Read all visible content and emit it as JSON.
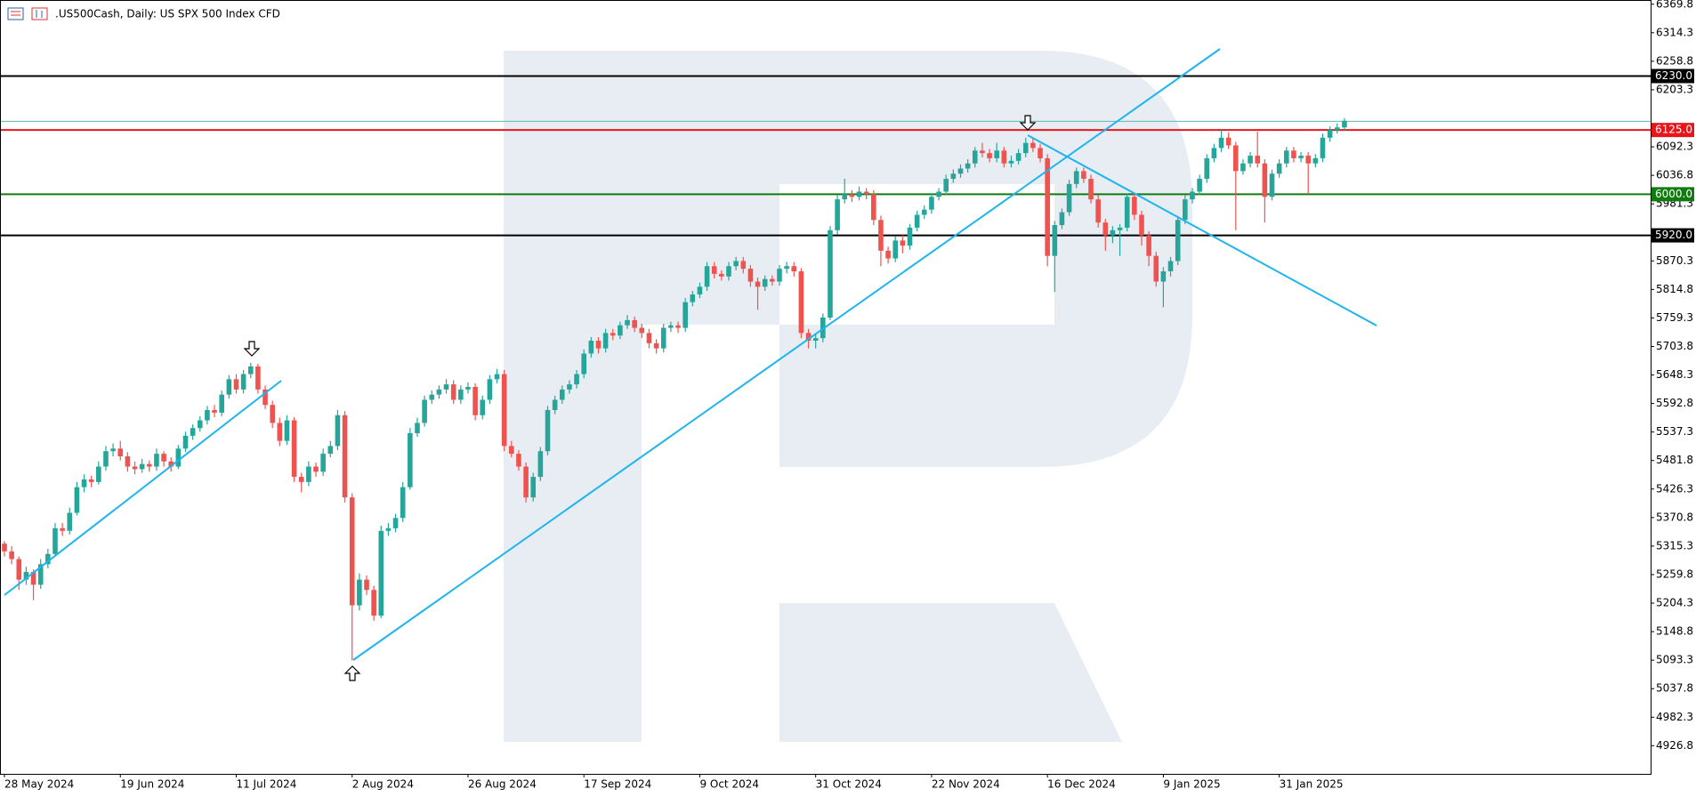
{
  "chart_data": {
    "type": "candlestick",
    "title": ".US500Cash, Daily:  US SPX 500 Index CFD",
    "up_color": "#26a69a",
    "down_color": "#ef5350",
    "ylim": [
      4872,
      6378
    ],
    "yticks": [
      6369.8,
      6314.3,
      6258.8,
      6203.3,
      6092.3,
      6036.8,
      5981.3,
      5870.3,
      5814.8,
      5759.3,
      5703.8,
      5648.3,
      5592.8,
      5537.3,
      5481.8,
      5426.3,
      5370.8,
      5315.3,
      5259.8,
      5204.3,
      5148.8,
      5093.3,
      5037.8,
      4982.3,
      4926.8
    ],
    "levels": [
      {
        "value": 6230,
        "label": "6230.0",
        "color": "#000000"
      },
      {
        "value": 6125,
        "label": "6125.0",
        "color": "#e8151b"
      },
      {
        "value": 6000,
        "label": "6000.0",
        "color": "#107c10"
      },
      {
        "value": 5920,
        "label": "5920.0",
        "color": "#000000"
      }
    ],
    "price_line": {
      "value": 6142,
      "color": "#5bb8b0"
    },
    "categories": [
      "28 May 2024",
      null,
      null,
      null,
      null,
      null,
      null,
      null,
      null,
      null,
      null,
      null,
      null,
      null,
      null,
      null,
      "19 Jun 2024",
      null,
      null,
      null,
      null,
      null,
      null,
      null,
      null,
      null,
      null,
      null,
      null,
      null,
      null,
      null,
      "11 Jul 2024",
      null,
      null,
      null,
      null,
      null,
      null,
      null,
      null,
      null,
      null,
      null,
      null,
      null,
      null,
      null,
      "2 Aug 2024",
      null,
      null,
      null,
      null,
      null,
      null,
      null,
      null,
      null,
      null,
      null,
      null,
      null,
      null,
      null,
      "26 Aug 2024",
      null,
      null,
      null,
      null,
      null,
      null,
      null,
      null,
      null,
      null,
      null,
      null,
      null,
      null,
      null,
      "17 Sep 2024",
      null,
      null,
      null,
      null,
      null,
      null,
      null,
      null,
      null,
      null,
      null,
      null,
      null,
      null,
      null,
      "9 Oct 2024",
      null,
      null,
      null,
      null,
      null,
      null,
      null,
      null,
      null,
      null,
      null,
      null,
      null,
      null,
      null,
      "31 Oct 2024",
      null,
      null,
      null,
      null,
      null,
      null,
      null,
      null,
      null,
      null,
      null,
      null,
      null,
      null,
      null,
      "22 Nov 2024",
      null,
      null,
      null,
      null,
      null,
      null,
      null,
      null,
      null,
      null,
      null,
      null,
      null,
      null,
      null,
      "16 Dec 2024",
      null,
      null,
      null,
      null,
      null,
      null,
      null,
      null,
      null,
      null,
      null,
      null,
      null,
      null,
      null,
      "9 Jan 2025",
      null,
      null,
      null,
      null,
      null,
      null,
      null,
      null,
      null,
      null,
      null,
      null,
      null,
      null,
      null,
      "31 Jan 2025",
      null,
      null,
      null,
      null,
      null,
      null,
      null,
      null,
      null
    ],
    "candles": [
      [
        5320,
        5325,
        5295,
        5305
      ],
      [
        5305,
        5315,
        5280,
        5290
      ],
      [
        5290,
        5295,
        5230,
        5250
      ],
      [
        5250,
        5275,
        5240,
        5265
      ],
      [
        5265,
        5270,
        5210,
        5240
      ],
      [
        5240,
        5290,
        5232,
        5280
      ],
      [
        5280,
        5310,
        5272,
        5300
      ],
      [
        5300,
        5360,
        5295,
        5350
      ],
      [
        5350,
        5360,
        5335,
        5345
      ],
      [
        5345,
        5390,
        5338,
        5380
      ],
      [
        5380,
        5440,
        5375,
        5430
      ],
      [
        5430,
        5455,
        5420,
        5445
      ],
      [
        5445,
        5452,
        5430,
        5440
      ],
      [
        5440,
        5480,
        5435,
        5470
      ],
      [
        5470,
        5510,
        5462,
        5500
      ],
      [
        5500,
        5515,
        5490,
        5505
      ],
      [
        5505,
        5520,
        5482,
        5490
      ],
      [
        5490,
        5498,
        5460,
        5470
      ],
      [
        5470,
        5480,
        5455,
        5465
      ],
      [
        5465,
        5485,
        5458,
        5475
      ],
      [
        5475,
        5482,
        5460,
        5470
      ],
      [
        5470,
        5505,
        5462,
        5495
      ],
      [
        5495,
        5500,
        5470,
        5480
      ],
      [
        5480,
        5488,
        5460,
        5470
      ],
      [
        5470,
        5512,
        5465,
        5505
      ],
      [
        5505,
        5538,
        5498,
        5530
      ],
      [
        5530,
        5552,
        5522,
        5545
      ],
      [
        5545,
        5568,
        5538,
        5560
      ],
      [
        5560,
        5588,
        5552,
        5580
      ],
      [
        5580,
        5590,
        5566,
        5575
      ],
      [
        5575,
        5618,
        5568,
        5610
      ],
      [
        5610,
        5648,
        5602,
        5640
      ],
      [
        5640,
        5650,
        5612,
        5620
      ],
      [
        5620,
        5658,
        5612,
        5650
      ],
      [
        5650,
        5672,
        5642,
        5665
      ],
      [
        5665,
        5670,
        5612,
        5620
      ],
      [
        5620,
        5628,
        5582,
        5590
      ],
      [
        5590,
        5598,
        5545,
        5555
      ],
      [
        5555,
        5565,
        5510,
        5520
      ],
      [
        5520,
        5570,
        5512,
        5560
      ],
      [
        5560,
        5566,
        5440,
        5450
      ],
      [
        5450,
        5458,
        5420,
        5440
      ],
      [
        5440,
        5480,
        5432,
        5470
      ],
      [
        5470,
        5478,
        5450,
        5460
      ],
      [
        5460,
        5505,
        5452,
        5495
      ],
      [
        5495,
        5520,
        5488,
        5510
      ],
      [
        5510,
        5580,
        5502,
        5570
      ],
      [
        5570,
        5578,
        5400,
        5410
      ],
      [
        5410,
        5418,
        5093,
        5200
      ],
      [
        5200,
        5262,
        5190,
        5250
      ],
      [
        5250,
        5258,
        5220,
        5230
      ],
      [
        5230,
        5238,
        5170,
        5180
      ],
      [
        5180,
        5355,
        5175,
        5345
      ],
      [
        5345,
        5360,
        5335,
        5350
      ],
      [
        5350,
        5378,
        5342,
        5370
      ],
      [
        5370,
        5440,
        5362,
        5430
      ],
      [
        5430,
        5545,
        5425,
        5535
      ],
      [
        5535,
        5565,
        5528,
        5555
      ],
      [
        5555,
        5608,
        5548,
        5600
      ],
      [
        5600,
        5618,
        5592,
        5610
      ],
      [
        5610,
        5628,
        5602,
        5620
      ],
      [
        5620,
        5640,
        5612,
        5630
      ],
      [
        5630,
        5638,
        5592,
        5600
      ],
      [
        5600,
        5628,
        5592,
        5620
      ],
      [
        5620,
        5634,
        5612,
        5625
      ],
      [
        5625,
        5632,
        5560,
        5570
      ],
      [
        5570,
        5608,
        5562,
        5600
      ],
      [
        5600,
        5648,
        5592,
        5640
      ],
      [
        5640,
        5660,
        5632,
        5650
      ],
      [
        5650,
        5658,
        5500,
        5510
      ],
      [
        5510,
        5520,
        5488,
        5495
      ],
      [
        5495,
        5502,
        5462,
        5470
      ],
      [
        5470,
        5478,
        5400,
        5410
      ],
      [
        5410,
        5458,
        5402,
        5450
      ],
      [
        5450,
        5508,
        5442,
        5500
      ],
      [
        5500,
        5588,
        5492,
        5580
      ],
      [
        5580,
        5608,
        5572,
        5600
      ],
      [
        5600,
        5628,
        5592,
        5620
      ],
      [
        5620,
        5638,
        5612,
        5630
      ],
      [
        5630,
        5658,
        5622,
        5650
      ],
      [
        5650,
        5698,
        5642,
        5690
      ],
      [
        5690,
        5722,
        5682,
        5715
      ],
      [
        5715,
        5722,
        5690,
        5700
      ],
      [
        5700,
        5738,
        5692,
        5730
      ],
      [
        5730,
        5738,
        5716,
        5725
      ],
      [
        5725,
        5752,
        5718,
        5745
      ],
      [
        5745,
        5765,
        5738,
        5755
      ],
      [
        5755,
        5762,
        5732,
        5740
      ],
      [
        5740,
        5748,
        5720,
        5730
      ],
      [
        5730,
        5738,
        5700,
        5710
      ],
      [
        5710,
        5718,
        5690,
        5700
      ],
      [
        5700,
        5748,
        5692,
        5740
      ],
      [
        5740,
        5752,
        5732,
        5745
      ],
      [
        5745,
        5752,
        5730,
        5740
      ],
      [
        5740,
        5798,
        5732,
        5790
      ],
      [
        5790,
        5812,
        5782,
        5805
      ],
      [
        5805,
        5828,
        5798,
        5820
      ],
      [
        5820,
        5868,
        5812,
        5860
      ],
      [
        5860,
        5868,
        5836,
        5845
      ],
      [
        5845,
        5852,
        5832,
        5840
      ],
      [
        5840,
        5868,
        5832,
        5860
      ],
      [
        5860,
        5878,
        5852,
        5870
      ],
      [
        5870,
        5878,
        5846,
        5855
      ],
      [
        5855,
        5862,
        5820,
        5830
      ],
      [
        5830,
        5838,
        5775,
        5820
      ],
      [
        5820,
        5842,
        5812,
        5835
      ],
      [
        5835,
        5842,
        5822,
        5830
      ],
      [
        5830,
        5862,
        5822,
        5855
      ],
      [
        5855,
        5868,
        5846,
        5860
      ],
      [
        5860,
        5868,
        5840,
        5850
      ],
      [
        5850,
        5856,
        5720,
        5730
      ],
      [
        5730,
        5738,
        5700,
        5715
      ],
      [
        5715,
        5728,
        5700,
        5720
      ],
      [
        5720,
        5768,
        5712,
        5760
      ],
      [
        5760,
        5938,
        5755,
        5930
      ],
      [
        5930,
        5998,
        5922,
        5990
      ],
      [
        5990,
        6030,
        5982,
        6000
      ],
      [
        6000,
        6008,
        5985,
        5995
      ],
      [
        5995,
        6015,
        5988,
        6005
      ],
      [
        6005,
        6012,
        5990,
        6000
      ],
      [
        6000,
        6008,
        5940,
        5950
      ],
      [
        5950,
        5958,
        5860,
        5890
      ],
      [
        5890,
        5898,
        5865,
        5875
      ],
      [
        5875,
        5918,
        5868,
        5910
      ],
      [
        5910,
        5920,
        5885,
        5900
      ],
      [
        5900,
        5942,
        5892,
        5935
      ],
      [
        5935,
        5968,
        5928,
        5960
      ],
      [
        5960,
        5978,
        5952,
        5970
      ],
      [
        5970,
        6002,
        5962,
        5995
      ],
      [
        5995,
        6012,
        5988,
        6005
      ],
      [
        6005,
        6038,
        5998,
        6030
      ],
      [
        6030,
        6048,
        6022,
        6040
      ],
      [
        6040,
        6058,
        6032,
        6050
      ],
      [
        6050,
        6068,
        6042,
        6060
      ],
      [
        6060,
        6092,
        6052,
        6085
      ],
      [
        6085,
        6100,
        6072,
        6080
      ],
      [
        6080,
        6088,
        6062,
        6070
      ],
      [
        6070,
        6100,
        6062,
        6085
      ],
      [
        6085,
        6092,
        6052,
        6060
      ],
      [
        6060,
        6075,
        6052,
        6065
      ],
      [
        6065,
        6088,
        6058,
        6080
      ],
      [
        6080,
        6110,
        6072,
        6100
      ],
      [
        6100,
        6108,
        6082,
        6090
      ],
      [
        6090,
        6098,
        6062,
        6070
      ],
      [
        6070,
        6078,
        5860,
        5880
      ],
      [
        5880,
        5948,
        5810,
        5940
      ],
      [
        5940,
        5972,
        5932,
        5965
      ],
      [
        5965,
        6028,
        5958,
        6020
      ],
      [
        6020,
        6052,
        6012,
        6045
      ],
      [
        6045,
        6052,
        6022,
        6030
      ],
      [
        6030,
        6038,
        5982,
        5990
      ],
      [
        5990,
        5998,
        5935,
        5945
      ],
      [
        5945,
        5952,
        5890,
        5920
      ],
      [
        5920,
        5938,
        5905,
        5930
      ],
      [
        5930,
        5942,
        5880,
        5935
      ],
      [
        5935,
        6002,
        5928,
        5995
      ],
      [
        5995,
        6002,
        5950,
        5960
      ],
      [
        5960,
        5968,
        5900,
        5920
      ],
      [
        5920,
        5928,
        5860,
        5880
      ],
      [
        5880,
        5888,
        5820,
        5830
      ],
      [
        5830,
        5858,
        5780,
        5850
      ],
      [
        5850,
        5878,
        5840,
        5870
      ],
      [
        5870,
        5958,
        5862,
        5950
      ],
      [
        5950,
        5998,
        5942,
        5990
      ],
      [
        5990,
        6012,
        5982,
        6005
      ],
      [
        6005,
        6038,
        5998,
        6030
      ],
      [
        6030,
        6078,
        6022,
        6070
      ],
      [
        6070,
        6098,
        6062,
        6090
      ],
      [
        6090,
        6125,
        6082,
        6110
      ],
      [
        6110,
        6120,
        6088,
        6095
      ],
      [
        6095,
        6102,
        5930,
        6045
      ],
      [
        6045,
        6068,
        6038,
        6060
      ],
      [
        6060,
        6082,
        6052,
        6075
      ],
      [
        6075,
        6122,
        6052,
        6060
      ],
      [
        6060,
        6068,
        5945,
        5995
      ],
      [
        5995,
        6048,
        5988,
        6040
      ],
      [
        6040,
        6068,
        6032,
        6060
      ],
      [
        6060,
        6092,
        6052,
        6085
      ],
      [
        6085,
        6092,
        6062,
        6070
      ],
      [
        6070,
        6082,
        6062,
        6075
      ],
      [
        6075,
        6082,
        6000,
        6060
      ],
      [
        6060,
        6078,
        6052,
        6070
      ],
      [
        6070,
        6118,
        6062,
        6110
      ],
      [
        6110,
        6132,
        6102,
        6125
      ],
      [
        6125,
        6138,
        6118,
        6130
      ],
      [
        6130,
        6148,
        6124,
        6143
      ]
    ]
  }
}
